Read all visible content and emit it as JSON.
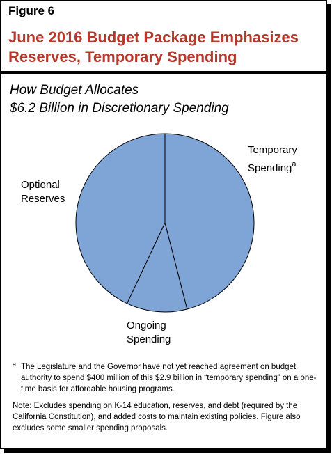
{
  "figure_label": "Figure 6",
  "title_line1": "June 2016 Budget Package Emphasizes",
  "title_line2": "Reserves, Temporary Spending",
  "subtitle_line1": "How Budget Allocates",
  "subtitle_line2": "$6.2 Billion in Discretionary Spending",
  "colors": {
    "title": "#b5382a",
    "slice_fill": "#7fa4d6",
    "border": "#000000"
  },
  "chart_data": {
    "type": "pie",
    "title": "How Budget Allocates $6.2 Billion in Discretionary Spending",
    "slices": [
      {
        "label": "Temporary Spending",
        "footnote_marker": "a",
        "value": 46
      },
      {
        "label": "Ongoing Spending",
        "value": 11
      },
      {
        "label": "Optional Reserves",
        "value": 43
      }
    ]
  },
  "labels": {
    "temporary_line1": "Temporary",
    "temporary_line2": "Spending",
    "temporary_sup": "a",
    "ongoing_line1": "Ongoing",
    "ongoing_line2": "Spending",
    "reserves_line1": "Optional",
    "reserves_line2": "Reserves"
  },
  "footnote": {
    "marker": "a",
    "text": "The Legislature and the Governor have not yet reached agreement on budget authority to spend $400 million of this $2.9 billion in “temporary spending” on a one-time basis for affordable housing programs."
  },
  "note": "Note: Excludes spending on K-14 education, reserves, and debt (required by the California Constitution), and added costs to maintain existing policies. Figure also excludes some smaller spending proposals."
}
